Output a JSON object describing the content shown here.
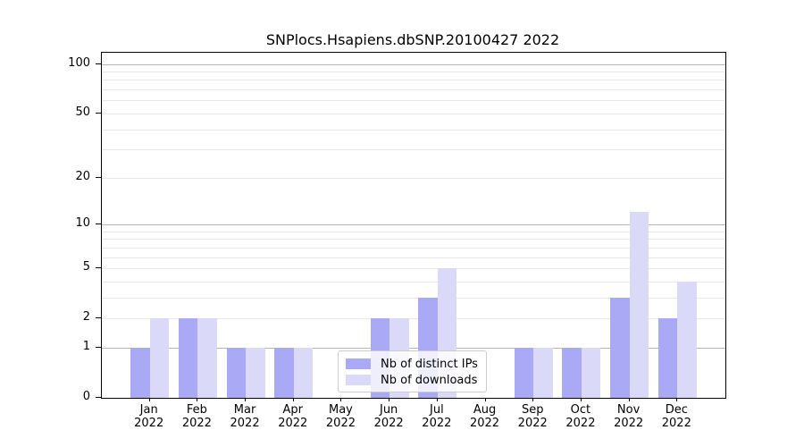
{
  "chart_data": {
    "type": "bar",
    "title": "SNPlocs.Hsapiens.dbSNP.20100427 2022",
    "categories": [
      "Jan",
      "Feb",
      "Mar",
      "Apr",
      "May",
      "Jun",
      "Jul",
      "Aug",
      "Sep",
      "Oct",
      "Nov",
      "Dec"
    ],
    "category_year": "2022",
    "series": [
      {
        "name": "Nb of distinct IPs",
        "color": "#a9a9f5",
        "values": [
          1,
          2,
          1,
          1,
          0,
          2,
          3,
          0,
          1,
          1,
          3,
          2
        ]
      },
      {
        "name": "Nb of downloads",
        "color": "#dadaf8",
        "values": [
          2,
          2,
          1,
          1,
          0,
          2,
          5,
          0,
          1,
          1,
          12,
          4
        ]
      }
    ],
    "yscale": "log1p",
    "ylim": [
      0,
      117
    ],
    "yticks": [
      0,
      1,
      2,
      5,
      10,
      20,
      50,
      100
    ],
    "grid": {
      "major_values": [
        1,
        10,
        100
      ],
      "minor_values": [
        2,
        3,
        4,
        5,
        6,
        7,
        8,
        9,
        20,
        30,
        40,
        50,
        60,
        70,
        80,
        90
      ],
      "major_color": "#b4b4b4",
      "minor_color": "#e8e8e8"
    },
    "legend": {
      "position": "lower center-left",
      "frame_alpha": 0.8
    },
    "axis_color": "#000000",
    "background_color": "#ffffff"
  }
}
